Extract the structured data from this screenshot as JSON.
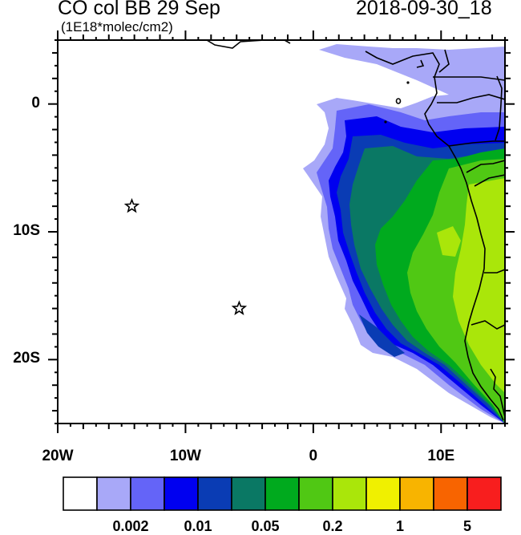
{
  "header": {
    "title": "CO col BB 29 Sep",
    "units": "(1E18*molec/cm2)",
    "datetime": "2018-09-30_18"
  },
  "axes": {
    "lon_labels": [
      {
        "lon": -20,
        "label": "20W"
      },
      {
        "lon": -10,
        "label": "10W"
      },
      {
        "lon": 0,
        "label": "0"
      },
      {
        "lon": 10,
        "label": "10E"
      }
    ],
    "lat_labels": [
      {
        "lat": 0,
        "label": "0"
      },
      {
        "lat": -10,
        "label": "10S"
      },
      {
        "lat": -20,
        "label": "20S"
      }
    ],
    "lon_range": [
      -20,
      15
    ],
    "lat_range": [
      -25,
      5
    ]
  },
  "markers": [
    {
      "name": "star-marker",
      "lon": -14.2,
      "lat": -8.0
    },
    {
      "name": "star-marker",
      "lon": -5.8,
      "lat": -16.0
    }
  ],
  "colorbar": {
    "colors": [
      "#ffffff",
      "#a8a8f8",
      "#6464f8",
      "#0000f0",
      "#0a3cb4",
      "#0a7864",
      "#00aa1e",
      "#50c814",
      "#aae60a",
      "#f0f000",
      "#f8b400",
      "#f86400",
      "#f81e1e"
    ],
    "labels": [
      {
        "boundary": 2,
        "label": "0.002"
      },
      {
        "boundary": 4,
        "label": "0.01"
      },
      {
        "boundary": 6,
        "label": "0.05"
      },
      {
        "boundary": 8,
        "label": "0.2"
      },
      {
        "boundary": 10,
        "label": "1"
      },
      {
        "boundary": 12,
        "label": "5"
      }
    ]
  }
}
